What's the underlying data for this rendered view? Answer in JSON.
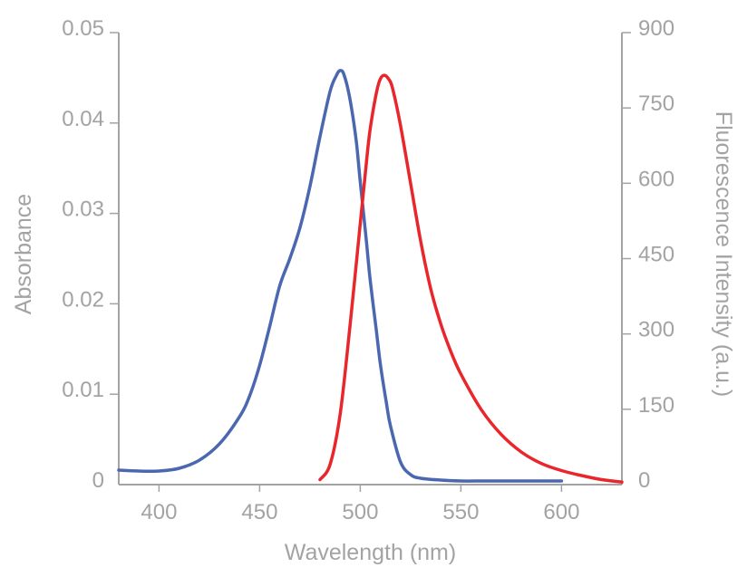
{
  "chart_data": {
    "type": "line",
    "title": "",
    "xlabel": "Wavelength (nm)",
    "ylabel_left": "Absorbance",
    "ylabel_right": "Fluorescence Intensity (a.u.)",
    "xlim": [
      380,
      630
    ],
    "ylim_left": [
      0,
      0.05
    ],
    "ylim_right": [
      0,
      900
    ],
    "x_ticks": [
      400,
      450,
      500,
      550,
      600
    ],
    "x_tick_labels": [
      "400",
      "450",
      "500",
      "550",
      "600"
    ],
    "y_left_ticks": [
      0,
      0.01,
      0.02,
      0.03,
      0.04,
      0.05
    ],
    "y_left_tick_labels": [
      "0",
      "0.01",
      "0.02",
      "0.03",
      "0.04",
      "0.05"
    ],
    "y_right_ticks": [
      0,
      150,
      300,
      450,
      600,
      750,
      900
    ],
    "y_right_tick_labels": [
      "0",
      "150",
      "300",
      "450",
      "600",
      "750",
      "900"
    ],
    "grid": false,
    "legend": "none",
    "colors": {
      "axis": "#a3a3a3",
      "absorbance": "#4a67b0",
      "fluorescence": "#e8262b"
    },
    "series": [
      {
        "axis": "left",
        "color": "#4a67b0",
        "x": [
          380,
          390,
          400,
          410,
          420,
          430,
          440,
          445,
          450,
          455,
          460,
          465,
          470,
          475,
          480,
          485,
          488,
          490,
          492,
          495,
          498,
          500,
          503,
          505,
          508,
          510,
          513,
          515,
          520,
          525,
          530,
          540,
          550,
          560,
          570,
          580,
          590,
          600
        ],
        "y": [
          0.0016,
          0.0015,
          0.0015,
          0.0018,
          0.0027,
          0.0045,
          0.0075,
          0.0098,
          0.0132,
          0.0175,
          0.022,
          0.025,
          0.0284,
          0.033,
          0.0385,
          0.0435,
          0.0452,
          0.0458,
          0.0453,
          0.0425,
          0.038,
          0.0335,
          0.027,
          0.0225,
          0.017,
          0.0133,
          0.009,
          0.0065,
          0.0025,
          0.0011,
          0.0007,
          0.0005,
          0.0004,
          0.0004,
          0.0004,
          0.0004,
          0.0004,
          0.0004
        ]
      },
      {
        "axis": "right",
        "color": "#e8262b",
        "x": [
          480,
          485,
          490,
          495,
          500,
          503,
          505,
          508,
          510,
          512,
          514,
          516,
          520,
          525,
          530,
          535,
          540,
          545,
          550,
          560,
          570,
          580,
          590,
          600,
          610,
          620,
          630
        ],
        "y": [
          10,
          40,
          140,
          320,
          520,
          640,
          710,
          780,
          808,
          815,
          808,
          790,
          715,
          600,
          485,
          390,
          320,
          265,
          220,
          150,
          100,
          65,
          42,
          28,
          18,
          10,
          5
        ]
      }
    ]
  }
}
